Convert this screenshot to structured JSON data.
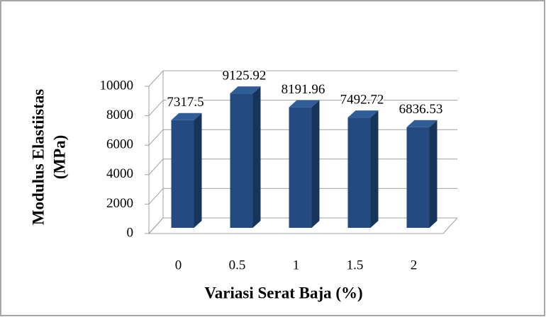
{
  "chart_data": {
    "type": "bar3d",
    "categories": [
      "0",
      "0.5",
      "1",
      "1.5",
      "2"
    ],
    "values": [
      7317.5,
      9125.92,
      8191.96,
      7492.72,
      6836.53
    ],
    "color": "#234b82",
    "ylim": [
      0,
      10000
    ],
    "yticks": [
      0,
      2000,
      4000,
      6000,
      8000,
      10000
    ],
    "grid": true,
    "x_label": "Variasi Serat Baja (%)",
    "y_label": [
      "Modulus Elastiistas",
      "(MPa)"
    ]
  }
}
